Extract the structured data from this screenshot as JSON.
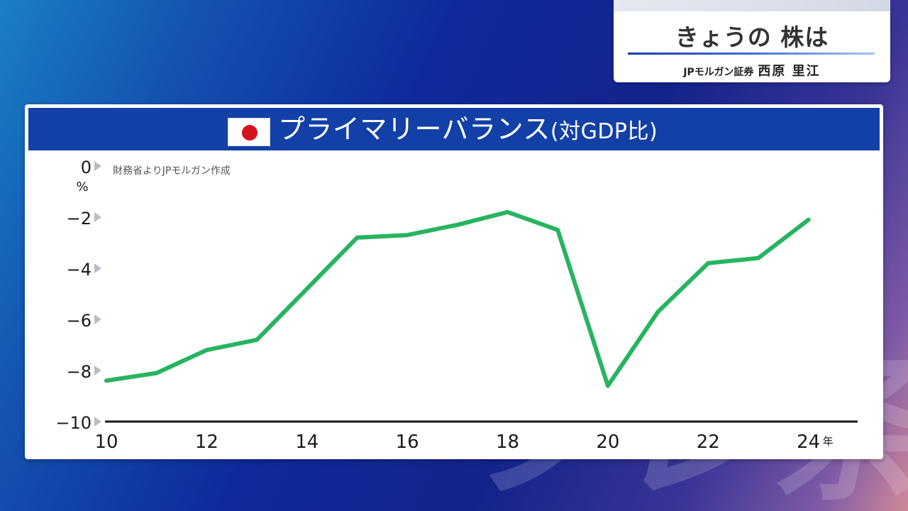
{
  "caption": {
    "title": "きょうの 株は",
    "org": "JPモルガン証券",
    "person": "西原 里江"
  },
  "panel": {
    "title": "プライマリーバランス",
    "title_suffix": "(対GDP比)",
    "flag_icon": "japan-flag-icon"
  },
  "colors": {
    "header_bg": "#1340a6",
    "line": "#27b461",
    "flag_red": "#d3141e"
  },
  "chart_data": {
    "type": "line",
    "title": "プライマリーバランス(対GDP比)",
    "source_note": "財務省よりJPモルガン作成",
    "y_unit": "%",
    "x_unit": "年",
    "x": [
      10,
      11,
      12,
      13,
      14,
      15,
      16,
      17,
      18,
      19,
      20,
      21,
      22,
      23,
      24
    ],
    "series": [
      {
        "values": [
          -8.4,
          -8.1,
          -7.2,
          -6.8,
          -4.8,
          -2.8,
          -2.7,
          -2.3,
          -1.8,
          -2.5,
          -8.6,
          -5.7,
          -3.8,
          -3.6,
          -2.1
        ]
      }
    ],
    "ylim": [
      -10,
      0
    ],
    "xlim": [
      10,
      24.5
    ],
    "y_ticks": [
      "0",
      "−2",
      "−4",
      "−6",
      "−8",
      "−10"
    ],
    "y_tick_values": [
      0,
      -2,
      -4,
      -6,
      -8,
      -10
    ],
    "x_ticks": [
      "10",
      "12",
      "14",
      "16",
      "18",
      "20",
      "22",
      "24"
    ],
    "x_tick_values": [
      10,
      12,
      14,
      16,
      18,
      20,
      22,
      24
    ],
    "grid": false,
    "legend": "none"
  }
}
